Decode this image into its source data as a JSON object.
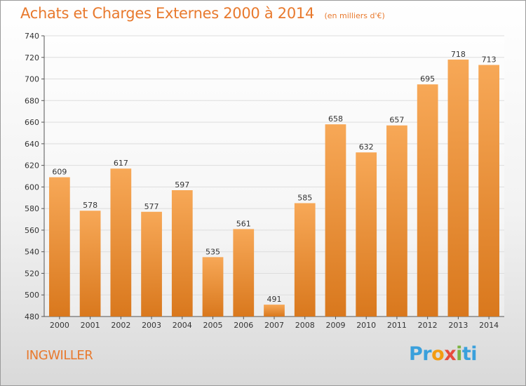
{
  "title": "Achats et Charges Externes 2000 à 2014",
  "subtitle": "(en milliers d'€)",
  "location": "INGWILLER",
  "logo": {
    "text": "Proxiti",
    "letters": [
      "P",
      "r",
      "o",
      "x",
      "i",
      "t",
      "i"
    ],
    "colors": [
      "#3aa0dc",
      "#3aa0dc",
      "#f39c12",
      "#e74c3c",
      "#7cb342",
      "#3aa0dc",
      "#3aa0dc"
    ]
  },
  "colors": {
    "bar_top": "#f7a857",
    "bar_bottom": "#d9781d",
    "title": "#e8792d",
    "grid": "#dddddd"
  },
  "chart_data": {
    "type": "bar",
    "title": "Achats et Charges Externes 2000 à 2014",
    "subtitle": "(en milliers d'€)",
    "categories": [
      "2000",
      "2001",
      "2002",
      "2003",
      "2004",
      "2005",
      "2006",
      "2007",
      "2008",
      "2009",
      "2010",
      "2011",
      "2012",
      "2013",
      "2014"
    ],
    "values": [
      609,
      578,
      617,
      577,
      597,
      535,
      561,
      491,
      585,
      658,
      632,
      657,
      695,
      718,
      713
    ],
    "ylim": [
      480,
      740
    ],
    "yticks": [
      480,
      500,
      520,
      540,
      560,
      580,
      600,
      620,
      640,
      660,
      680,
      700,
      720,
      740
    ],
    "grid": true,
    "legend": false
  }
}
